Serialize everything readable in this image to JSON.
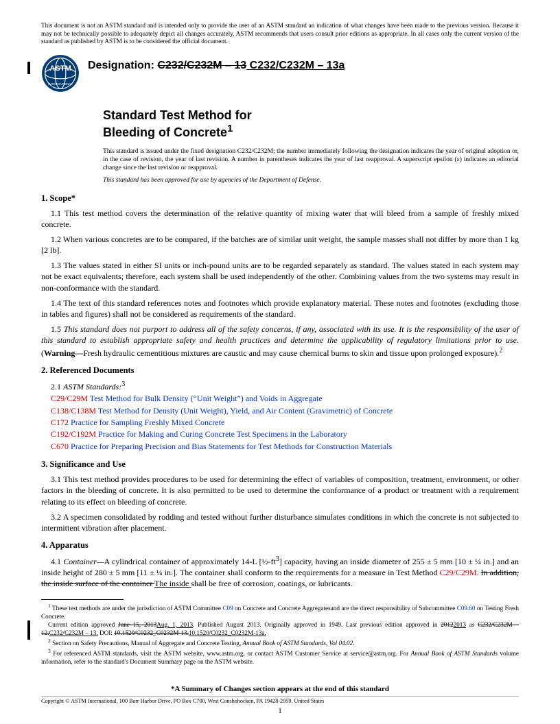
{
  "disclaimer": "This document is not an ASTM standard and is intended only to provide the user of an ASTM standard an indication of what changes have been made to the previous version. Because it may not be technically possible to adequately depict all changes accurately, ASTM recommends that users consult prior editions as appropriate. In all cases only the current version of the standard as published by ASTM is to be considered the official document.",
  "designation_label": "Designation: ",
  "designation_old": "C232/C232M – 13",
  "designation_new": " C232/C232M – 13a",
  "title_line1": "Standard Test Method for",
  "title_line2": "Bleeding of Concrete",
  "title_sup": "1",
  "issuance": "This standard is issued under the fixed designation C232/C232M; the number immediately following the designation indicates the year of original adoption or, in the case of revision, the year of last revision. A number in parentheses indicates the year of last reapproval. A superscript epsilon (ε) indicates an editorial change since the last revision or reapproval.",
  "dod_note": "This standard has been approved for use by agencies of the Department of Defense.",
  "sections": {
    "scope": {
      "head": "1.  Scope*",
      "p1": "1.1  This test method covers the determination of the relative quantity of mixing water that will bleed from a sample of freshly mixed concrete.",
      "p2": "1.2  When various concretes are to be compared, if the batches are of similar unit weight, the sample masses shall not differ by more than 1 kg [2 lb].",
      "p3": "1.3  The values stated in either SI units or inch-pound units are to be regarded separately as standard. The values stated in each system may not be exact equivalents; therefore, each system shall be used independently of the other. Combining values from the two systems may result in non-conformance with the standard.",
      "p4": "1.4  The text of this standard references notes and footnotes which provide explanatory material. These notes and footnotes (excluding those in tables and figures) shall not be considered as requirements of the standard.",
      "p5a": "1.5  ",
      "p5b": "This standard does not purport to address all of the safety concerns, if any, associated with its use. It is the responsibility of the user of this standard to establish appropriate safety and health practices and determine the applicability of regulatory limitations prior to use.",
      "p5c": " (",
      "p5warn": "Warning—",
      "p5d": "Fresh hydraulic cementitious mixtures are caustic and may cause chemical burns to skin and tissue upon prolonged exposure).",
      "p5sup": "2"
    },
    "refs": {
      "head": "2.  Referenced Documents",
      "sub": "2.1  ",
      "sub_italic": "ASTM Standards:",
      "sub_sup": "3",
      "items": [
        {
          "code": "C29/C29M",
          "title": " Test Method for Bulk Density (“Unit Weight”) and Voids in Aggregate"
        },
        {
          "code": "C138/C138M",
          "title": " Test Method for Density (Unit Weight), Yield, and Air Content (Gravimetric) of Concrete"
        },
        {
          "code": "C172",
          "title": " Practice for Sampling Freshly Mixed Concrete"
        },
        {
          "code": "C192/C192M",
          "title": " Practice for Making and Curing Concrete Test Specimens in the Laboratory"
        },
        {
          "code": "C670",
          "title": " Practice for Preparing Precision and Bias Statements for Test Methods for Construction Materials"
        }
      ]
    },
    "sig": {
      "head": "3.  Significance and Use",
      "p1": "3.1  This test method provides procedures to be used for determining the effect of variables of composition, treatment, environment, or other factors in the bleeding of concrete. It is also permitted to be used to determine the conformance of a product or treatment with a requirement relating to its effect on bleeding of concrete.",
      "p2": "3.2  A specimen consolidated by rodding and tested without further disturbance simulates conditions in which the concrete is not subjected to intermittent vibration after placement."
    },
    "app": {
      "head": "4.  Apparatus",
      "p1a": "4.1  ",
      "p1_container": "Container—",
      "p1b": "A cylindrical container of approximately 14-L [½-ft",
      "p1sup3": "3",
      "p1c": "] capacity, having an inside diameter of 255 ± 5 mm [10 ± ¼ in.] and an inside height of 280 ± 5 mm [11 ± ¼ in.]. The container shall conform to the requirements for a measure in Test Method ",
      "p1_ref": "C29/C29M",
      "p1d": ". ",
      "p1_strike": "In addition, the inside surface of the container ",
      "p1_new": "The inside ",
      "p1e": "shall be free of corrosion, coatings, or lubricants."
    }
  },
  "footnotes": {
    "f1a": " These test methods are under the jurisdiction of ASTM Committee ",
    "f1_c09": "C09",
    "f1b": " on Concrete and Concrete Aggregatesand are the direct responsibility of Subcommittee ",
    "f1_c0960": "C09.60",
    "f1c": " on Testing Fresh Concrete.",
    "f1_line2a": "Current edition approved ",
    "f1_old_date": "June 15, 2013",
    "f1_new_date": "Aug. 1, 2013",
    "f1_line2b": ". Published August 2013. Originally approved in 1949. Last previous edition approved in ",
    "f1_old_year": "2012",
    "f1_new_year": "2013",
    "f1_line2c": " as ",
    "f1_old_des": "C232/C232M – 12.",
    "f1_new_des": "C232/C232M – 13.",
    "f1_line2d": " DOI: ",
    "f1_old_doi": "10.1520/C0232_C0232M-13.",
    "f1_new_doi": "10.1520/C0232_C0232M-13a.",
    "f2": " Section on Safety Precautions, Manual of Aggregate and Concrete Testing, ",
    "f2_italic": "Annual Book of ASTM Standards, Vol 04.02",
    "f2_end": ".",
    "f3": " For referenced ASTM standards, visit the ASTM website, www.astm.org, or contact ASTM Customer Service at service@astm.org. For ",
    "f3_italic": "Annual Book of ASTM Standards",
    "f3_end": " volume information, refer to the standard's Document Summary page on the ASTM website."
  },
  "summary_note": "*A Summary of Changes section appears at the end of this standard",
  "copyright": "Copyright © ASTM International, 100 Barr Harbor Drive, PO Box C700, West Conshohocken, PA 19428-2959. United States",
  "page_number": "1"
}
